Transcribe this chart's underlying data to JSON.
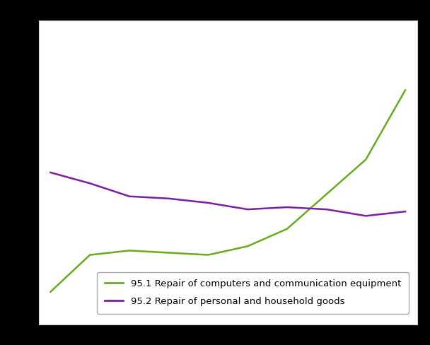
{
  "x": [
    0,
    1,
    2,
    3,
    4,
    5,
    6,
    7,
    8,
    9
  ],
  "line1_values": [
    55,
    72,
    74,
    73,
    72,
    76,
    84,
    100,
    116,
    148
  ],
  "line2_values": [
    110,
    105,
    99,
    98,
    96,
    93,
    94,
    93,
    90,
    92
  ],
  "line1_color": "#6aaa1e",
  "line2_color": "#7b1fa2",
  "line1_label": "95.1 Repair of computers and communication equipment",
  "line2_label": "95.2 Repair of personal and household goods",
  "outer_bg_color": "#000000",
  "plot_bg_color": "#ffffff",
  "grid_color": "#cccccc",
  "ylim": [
    40,
    180
  ],
  "xlim_min": -0.3,
  "xlim_max": 9.3,
  "linewidth": 1.8,
  "legend_fontsize": 9.5
}
